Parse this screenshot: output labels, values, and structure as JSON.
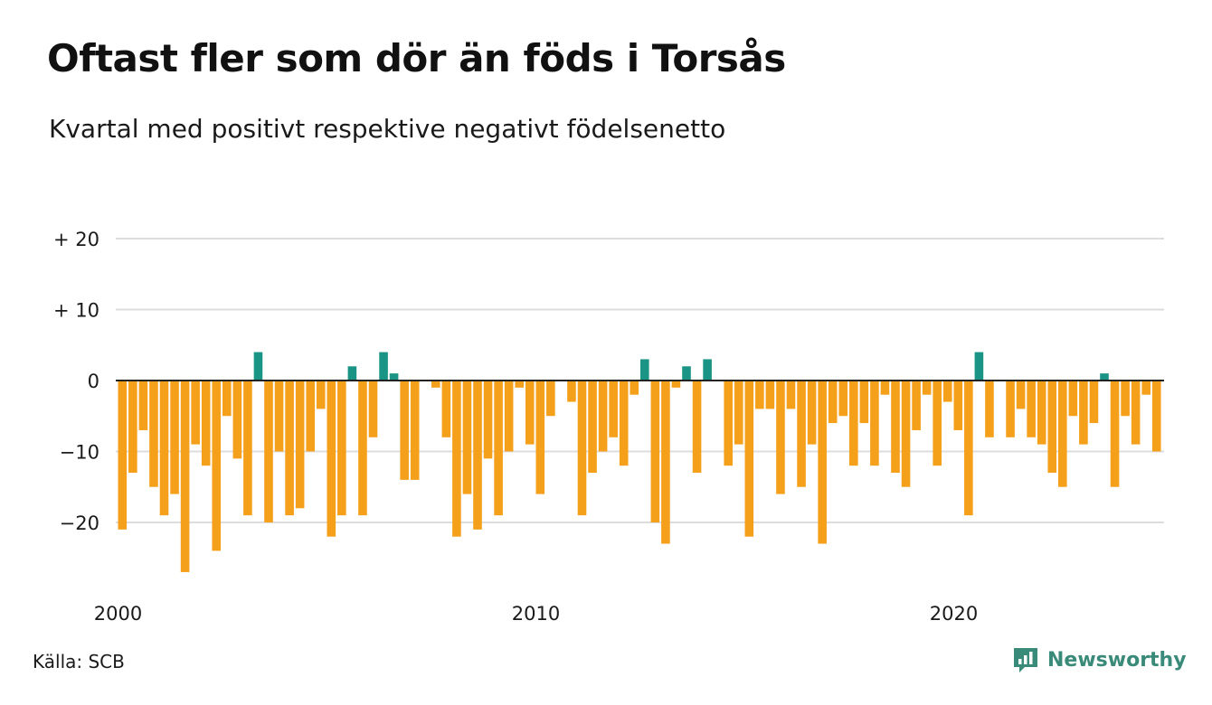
{
  "title": "Oftast fler som dör än föds i Torsås",
  "subtitle": "Kvartal med positivt respektive negativt födelsenetto",
  "source": "Källa: SCB",
  "brand": {
    "name": "Newsworthy",
    "icon": "newsworthy-logo-icon"
  },
  "colors": {
    "positive": "#1a9485",
    "negative": "#f5a01a",
    "grid": "#dddddd",
    "zero_line": "#222222"
  },
  "chart_data": {
    "type": "bar",
    "title": "Oftast fler som dör än föds i Torsås",
    "subtitle": "Kvartal med positivt respektive negativt födelsenetto",
    "xlabel": "",
    "ylabel": "",
    "ylim": [
      -28,
      20
    ],
    "grid": true,
    "x_start": "2000 Q1",
    "x_ticks": [
      {
        "index": 0,
        "label": "2000"
      },
      {
        "index": 40,
        "label": "2010"
      },
      {
        "index": 80,
        "label": "2020"
      }
    ],
    "y_ticks": [
      {
        "value": 20,
        "label": "+ 20"
      },
      {
        "value": 10,
        "label": "+ 10"
      },
      {
        "value": 0,
        "label": "0"
      },
      {
        "value": -10,
        "label": "−10"
      },
      {
        "value": -20,
        "label": "−20"
      }
    ],
    "values": [
      -21,
      -13,
      -7,
      -15,
      -19,
      -16,
      -27,
      -9,
      -12,
      -24,
      -5,
      -11,
      -19,
      4,
      -20,
      -10,
      -19,
      -18,
      -10,
      -4,
      -22,
      -19,
      2,
      -19,
      -8,
      4,
      1,
      -14,
      -14,
      0,
      -1,
      -8,
      -22,
      -16,
      -21,
      -11,
      -19,
      -10,
      -1,
      -9,
      -16,
      -5,
      0,
      -3,
      -19,
      -13,
      -10,
      -8,
      -12,
      -2,
      3,
      -20,
      -23,
      -1,
      2,
      -13,
      3,
      0,
      -12,
      -9,
      -22,
      -4,
      -4,
      -16,
      -4,
      -15,
      -9,
      -23,
      -6,
      -5,
      -12,
      -6,
      -12,
      -2,
      -13,
      -15,
      -7,
      -2,
      -12,
      -3,
      -7,
      -19,
      4,
      -8,
      0,
      -8,
      -4,
      -8,
      -9,
      -13,
      -15,
      -5,
      -9,
      -6,
      1,
      -15,
      -5,
      -9,
      -2,
      -10
    ]
  }
}
